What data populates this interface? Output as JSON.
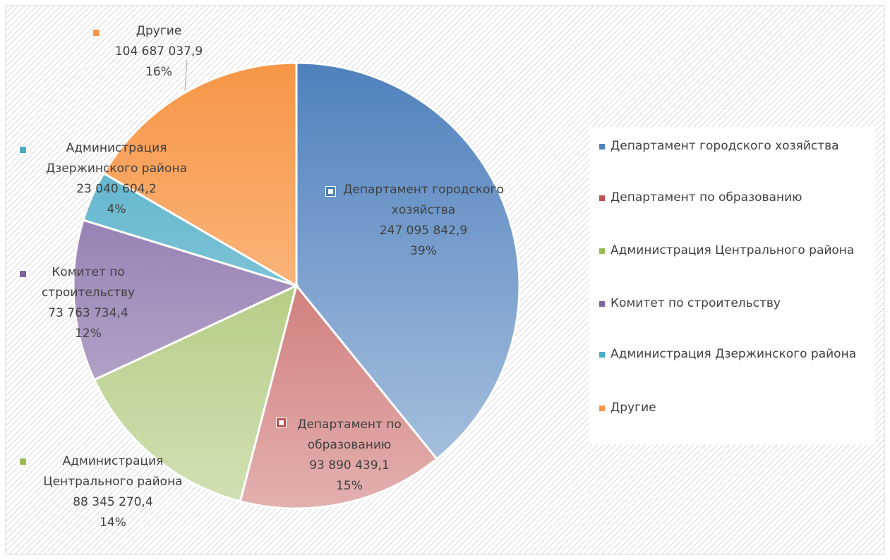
{
  "chart_data": {
    "type": "pie",
    "categories": [
      "Департамент городского хозяйства",
      "Департамент по образованию",
      "Администрация Центрального района",
      "Комитет по строительству",
      "Администрация Дзержинского района",
      "Другие"
    ],
    "values": [
      247095842.9,
      93890439.1,
      88345270.4,
      73763734.4,
      23040604.2,
      104687037.9
    ],
    "value_labels": [
      "247 095 842,9",
      "93 890 439,1",
      "88 345 270,4",
      "73 763 734,4",
      "23 040 604,2",
      "104 687 037,9"
    ],
    "percent_labels": [
      "39%",
      "15%",
      "14%",
      "12%",
      "4%",
      "16%"
    ],
    "colors": [
      "#4f81bd",
      "#c0504d",
      "#9bbb59",
      "#8064a2",
      "#4bacc6",
      "#f79646"
    ],
    "legend": "right"
  }
}
